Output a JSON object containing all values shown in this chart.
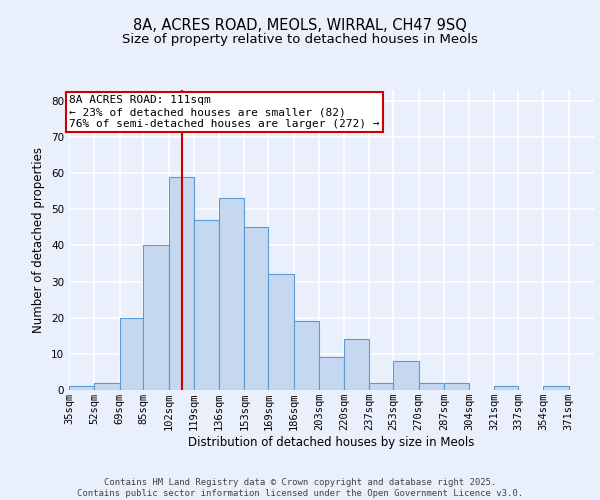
{
  "title": "8A, ACRES ROAD, MEOLS, WIRRAL, CH47 9SQ",
  "subtitle": "Size of property relative to detached houses in Meols",
  "xlabel": "Distribution of detached houses by size in Meols",
  "ylabel": "Number of detached properties",
  "bin_labels": [
    "35sqm",
    "52sqm",
    "69sqm",
    "85sqm",
    "102sqm",
    "119sqm",
    "136sqm",
    "153sqm",
    "169sqm",
    "186sqm",
    "203sqm",
    "220sqm",
    "237sqm",
    "253sqm",
    "270sqm",
    "287sqm",
    "304sqm",
    "321sqm",
    "337sqm",
    "354sqm",
    "371sqm"
  ],
  "bar_values": [
    1,
    2,
    20,
    40,
    59,
    47,
    53,
    45,
    32,
    19,
    9,
    14,
    2,
    8,
    2,
    2,
    0,
    1,
    0,
    1,
    0
  ],
  "bar_color": "#c5d8f0",
  "bar_edge_color": "#5b9bd5",
  "reference_line_x": 111,
  "bin_edges": [
    35,
    52,
    69,
    85,
    102,
    119,
    136,
    153,
    169,
    186,
    203,
    220,
    237,
    253,
    270,
    287,
    304,
    321,
    337,
    354,
    371,
    388
  ],
  "annotation_text": "8A ACRES ROAD: 111sqm\n← 23% of detached houses are smaller (82)\n76% of semi-detached houses are larger (272) →",
  "annotation_box_color": "#ffffff",
  "annotation_box_edge_color": "#cc0000",
  "reference_line_color": "#cc0000",
  "ylim": [
    0,
    83
  ],
  "yticks": [
    0,
    10,
    20,
    30,
    40,
    50,
    60,
    70,
    80
  ],
  "footer_text": "Contains HM Land Registry data © Crown copyright and database right 2025.\nContains public sector information licensed under the Open Government Licence v3.0.",
  "background_color": "#eaf0fb",
  "grid_color": "#ffffff",
  "title_fontsize": 10.5,
  "subtitle_fontsize": 9.5,
  "axis_label_fontsize": 8.5,
  "tick_fontsize": 7.5,
  "annotation_fontsize": 8,
  "footer_fontsize": 6.5
}
